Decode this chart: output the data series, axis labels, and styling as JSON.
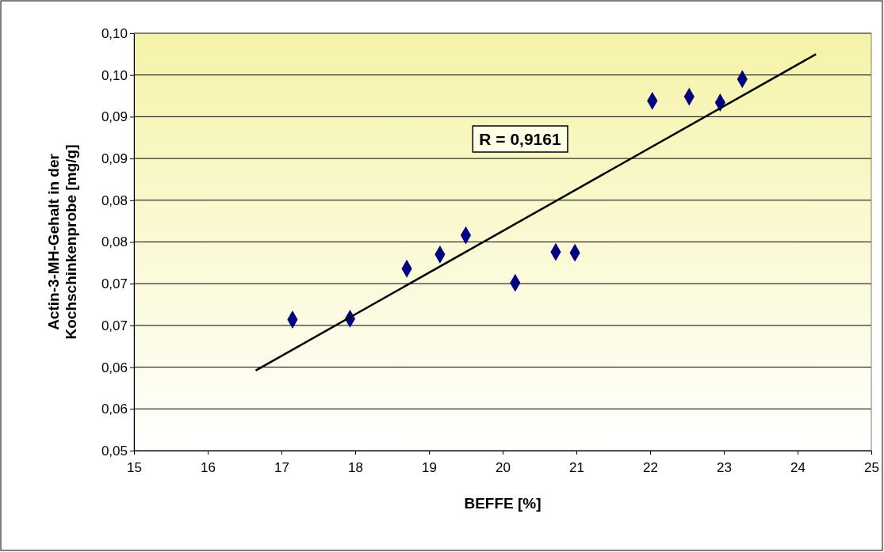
{
  "chart_data": {
    "type": "scatter",
    "xlabel": "BEFFE [%]",
    "ylabel": "Actin-3-MH-Gehalt in der Kochschinkenprobe [mg/g]",
    "xlim": [
      15,
      25
    ],
    "xticks": [
      15,
      16,
      17,
      18,
      19,
      20,
      21,
      22,
      23,
      24,
      25
    ],
    "ylim": [
      0.05,
      0.1
    ],
    "yticks": [
      {
        "value": 0.05,
        "label": "0,05"
      },
      {
        "value": 0.055,
        "label": "0,06"
      },
      {
        "value": 0.06,
        "label": "0,06"
      },
      {
        "value": 0.065,
        "label": "0,07"
      },
      {
        "value": 0.07,
        "label": "0,07"
      },
      {
        "value": 0.075,
        "label": "0,08"
      },
      {
        "value": 0.08,
        "label": "0,08"
      },
      {
        "value": 0.085,
        "label": "0,09"
      },
      {
        "value": 0.09,
        "label": "0,09"
      },
      {
        "value": 0.095,
        "label": "0,10"
      },
      {
        "value": 0.1,
        "label": "0,10"
      }
    ],
    "grid": "y",
    "series": [
      {
        "marker": "diamond",
        "color": "#000080",
        "x": [
          17.15,
          17.93,
          18.7,
          19.15,
          19.5,
          20.17,
          20.72,
          20.98,
          22.03,
          22.53,
          22.95,
          23.25
        ],
        "values": [
          0.0657,
          0.0658,
          0.0718,
          0.0735,
          0.0758,
          0.0701,
          0.0738,
          0.0737,
          0.0919,
          0.0924,
          0.0917,
          0.0945
        ]
      },
      {
        "type": "line",
        "marker": "none",
        "color": "#000000",
        "x": [
          16.65,
          24.25
        ],
        "values": [
          0.0596,
          0.0975
        ]
      }
    ],
    "annotations": [
      "R = 0,9161"
    ]
  }
}
